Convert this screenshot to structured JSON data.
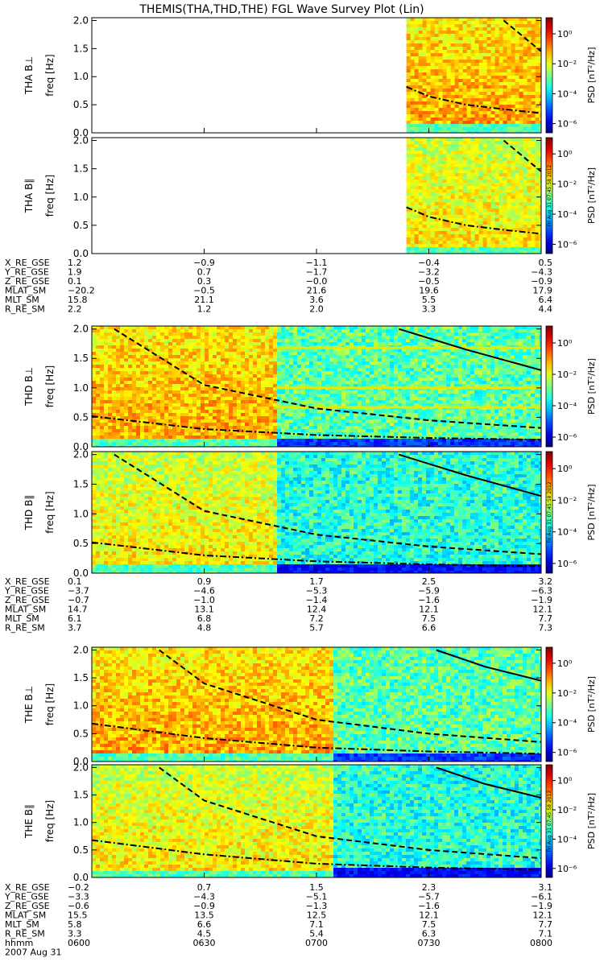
{
  "title": "THEMIS(THA,THD,THE) FGL Wave Survey Plot (Lin)",
  "timestamp": "Fri Aug 31 07:45:58 2012",
  "colorbar": {
    "label": "PSD [nT²/Hz]",
    "tick_labels": [
      "10⁰",
      "10⁻²",
      "10⁻⁴",
      "10⁻⁶"
    ]
  },
  "chart_data": {
    "type": "heatmap",
    "x_unit": "hhmm",
    "date_label": "2007 Aug 31",
    "x_ticks": [
      "0600",
      "0630",
      "0700",
      "0730",
      "0800"
    ],
    "xlim": [
      "0600",
      "0800"
    ],
    "ylim": [
      0,
      2.0
    ],
    "y_ticks": [
      "0.0",
      "0.5",
      "1.0",
      "1.5",
      "2.0"
    ],
    "ylabel": "freq [Hz]",
    "zlabel": "PSD [nT^2/Hz]",
    "zscale": "log",
    "panels": [
      {
        "probe": "THA",
        "name": "THA B⊥",
        "data_start": "0724",
        "active_end": "none",
        "bright_stripes": [],
        "lines": [
          {
            "style": "dash-dot",
            "x": [
              "0724",
              "0730",
              "0740",
              "0750",
              "0800"
            ],
            "y": [
              0.82,
              0.65,
              0.5,
              0.42,
              0.35
            ]
          },
          {
            "style": "dashed",
            "x": [
              "0750",
              "0800"
            ],
            "y": [
              2.0,
              1.45
            ]
          }
        ]
      },
      {
        "probe": "THA",
        "name": "THA B∥",
        "data_start": "0724",
        "active_end": "none",
        "bright_stripes": [],
        "lines": [
          {
            "style": "dash-dot",
            "x": [
              "0724",
              "0730",
              "0740",
              "0750",
              "0800"
            ],
            "y": [
              0.82,
              0.65,
              0.5,
              0.42,
              0.35
            ]
          },
          {
            "style": "dashed",
            "x": [
              "0750",
              "0800"
            ],
            "y": [
              2.0,
              1.45
            ]
          }
        ]
      },
      {
        "probe": "THD",
        "name": "THD B⊥",
        "data_start": "0600",
        "active_end": "0649",
        "bright_stripes": [
          1.68,
          1.0,
          0.67
        ],
        "lines": [
          {
            "style": "dash-dot",
            "x": [
              "0600",
              "0630",
              "0700",
              "0730",
              "0800"
            ],
            "y": [
              0.52,
              0.3,
              0.2,
              0.15,
              0.12
            ]
          },
          {
            "style": "dashed",
            "x": [
              "0606",
              "0630",
              "0700",
              "0730",
              "0800"
            ],
            "y": [
              2.0,
              1.05,
              0.65,
              0.45,
              0.32
            ]
          },
          {
            "style": "solid",
            "x": [
              "0722",
              "0740",
              "0800"
            ],
            "y": [
              2.0,
              1.65,
              1.3
            ]
          }
        ]
      },
      {
        "probe": "THD",
        "name": "THD B∥",
        "data_start": "0600",
        "active_end": "0649",
        "bright_stripes": [],
        "lines": [
          {
            "style": "dash-dot",
            "x": [
              "0600",
              "0630",
              "0700",
              "0730",
              "0800"
            ],
            "y": [
              0.52,
              0.3,
              0.2,
              0.15,
              0.12
            ]
          },
          {
            "style": "dashed",
            "x": [
              "0606",
              "0630",
              "0700",
              "0730",
              "0800"
            ],
            "y": [
              2.0,
              1.05,
              0.65,
              0.45,
              0.32
            ]
          },
          {
            "style": "solid",
            "x": [
              "0722",
              "0740",
              "0800"
            ],
            "y": [
              2.0,
              1.65,
              1.3
            ]
          }
        ]
      },
      {
        "probe": "THE",
        "name": "THE B⊥",
        "data_start": "0600",
        "active_end": "0704",
        "bright_stripes": [],
        "lines": [
          {
            "style": "dash-dot",
            "x": [
              "0600",
              "0630",
              "0700",
              "0730",
              "0800"
            ],
            "y": [
              0.68,
              0.42,
              0.25,
              0.18,
              0.14
            ]
          },
          {
            "style": "dashed",
            "x": [
              "0618",
              "0630",
              "0700",
              "0730",
              "0800"
            ],
            "y": [
              2.0,
              1.4,
              0.75,
              0.5,
              0.35
            ]
          },
          {
            "style": "solid",
            "x": [
              "0732",
              "0745",
              "0800"
            ],
            "y": [
              2.0,
              1.7,
              1.45
            ]
          }
        ]
      },
      {
        "probe": "THE",
        "name": "THE B∥",
        "data_start": "0600",
        "active_end": "0704",
        "bright_stripes": [],
        "lines": [
          {
            "style": "dash-dot",
            "x": [
              "0600",
              "0630",
              "0700",
              "0730",
              "0800"
            ],
            "y": [
              0.68,
              0.42,
              0.25,
              0.18,
              0.14
            ]
          },
          {
            "style": "dashed",
            "x": [
              "0618",
              "0630",
              "0700",
              "0730",
              "0800"
            ],
            "y": [
              2.0,
              1.4,
              0.75,
              0.5,
              0.35
            ]
          },
          {
            "style": "solid",
            "x": [
              "0732",
              "0745",
              "0800"
            ],
            "y": [
              2.0,
              1.7,
              1.45
            ]
          }
        ]
      }
    ],
    "ephemeris": [
      {
        "probe": "THA",
        "rows": [
          {
            "label": "X_RE_GSE",
            "values": [
              "1.2",
              "−0.9",
              "−1.1",
              "−0.4",
              "0.5"
            ]
          },
          {
            "label": "Y_RE_GSE",
            "values": [
              "1.9",
              "0.7",
              "−1.7",
              "−3.2",
              "−4.3"
            ]
          },
          {
            "label": "Z_RE_GSE",
            "values": [
              "0.1",
              "0.3",
              "−0.0",
              "−0.5",
              "−0.9"
            ]
          },
          {
            "label": "MLAT_SM",
            "values": [
              "−20.2",
              "−0.5",
              "21.6",
              "19.6",
              "17.9"
            ]
          },
          {
            "label": "MLT_SM",
            "values": [
              "15.8",
              "21.1",
              "3.6",
              "5.5",
              "6.4"
            ]
          },
          {
            "label": "R_RE_SM",
            "values": [
              "2.2",
              "1.2",
              "2.0",
              "3.3",
              "4.4"
            ]
          }
        ]
      },
      {
        "probe": "THD",
        "rows": [
          {
            "label": "X_RE_GSE",
            "values": [
              "0.1",
              "0.9",
              "1.7",
              "2.5",
              "3.2"
            ]
          },
          {
            "label": "Y_RE_GSE",
            "values": [
              "−3.7",
              "−4.6",
              "−5.3",
              "−5.9",
              "−6.3"
            ]
          },
          {
            "label": "Z_RE_GSE",
            "values": [
              "−0.7",
              "−1.0",
              "−1.4",
              "−1.6",
              "−1.9"
            ]
          },
          {
            "label": "MLAT_SM",
            "values": [
              "14.7",
              "13.1",
              "12.4",
              "12.1",
              "12.1"
            ]
          },
          {
            "label": "MLT_SM",
            "values": [
              "6.1",
              "6.8",
              "7.2",
              "7.5",
              "7.7"
            ]
          },
          {
            "label": "R_RE_SM",
            "values": [
              "3.7",
              "4.8",
              "5.7",
              "6.6",
              "7.3"
            ]
          }
        ]
      },
      {
        "probe": "THE",
        "rows": [
          {
            "label": "X_RE_GSE",
            "values": [
              "−0.2",
              "0.7",
              "1.5",
              "2.3",
              "3.1"
            ]
          },
          {
            "label": "Y_RE_GSE",
            "values": [
              "−3.3",
              "−4.3",
              "−5.1",
              "−5.7",
              "−6.1"
            ]
          },
          {
            "label": "Z_RE_GSE",
            "values": [
              "−0.6",
              "−0.9",
              "−1.3",
              "−1.6",
              "−1.9"
            ]
          },
          {
            "label": "MLAT_SM",
            "values": [
              "15.5",
              "13.5",
              "12.5",
              "12.1",
              "12.1"
            ]
          },
          {
            "label": "MLT_SM",
            "values": [
              "5.8",
              "6.6",
              "7.1",
              "7.5",
              "7.7"
            ]
          },
          {
            "label": "R_RE_SM",
            "values": [
              "3.3",
              "4.5",
              "5.4",
              "6.3",
              "7.1"
            ]
          }
        ]
      }
    ]
  }
}
